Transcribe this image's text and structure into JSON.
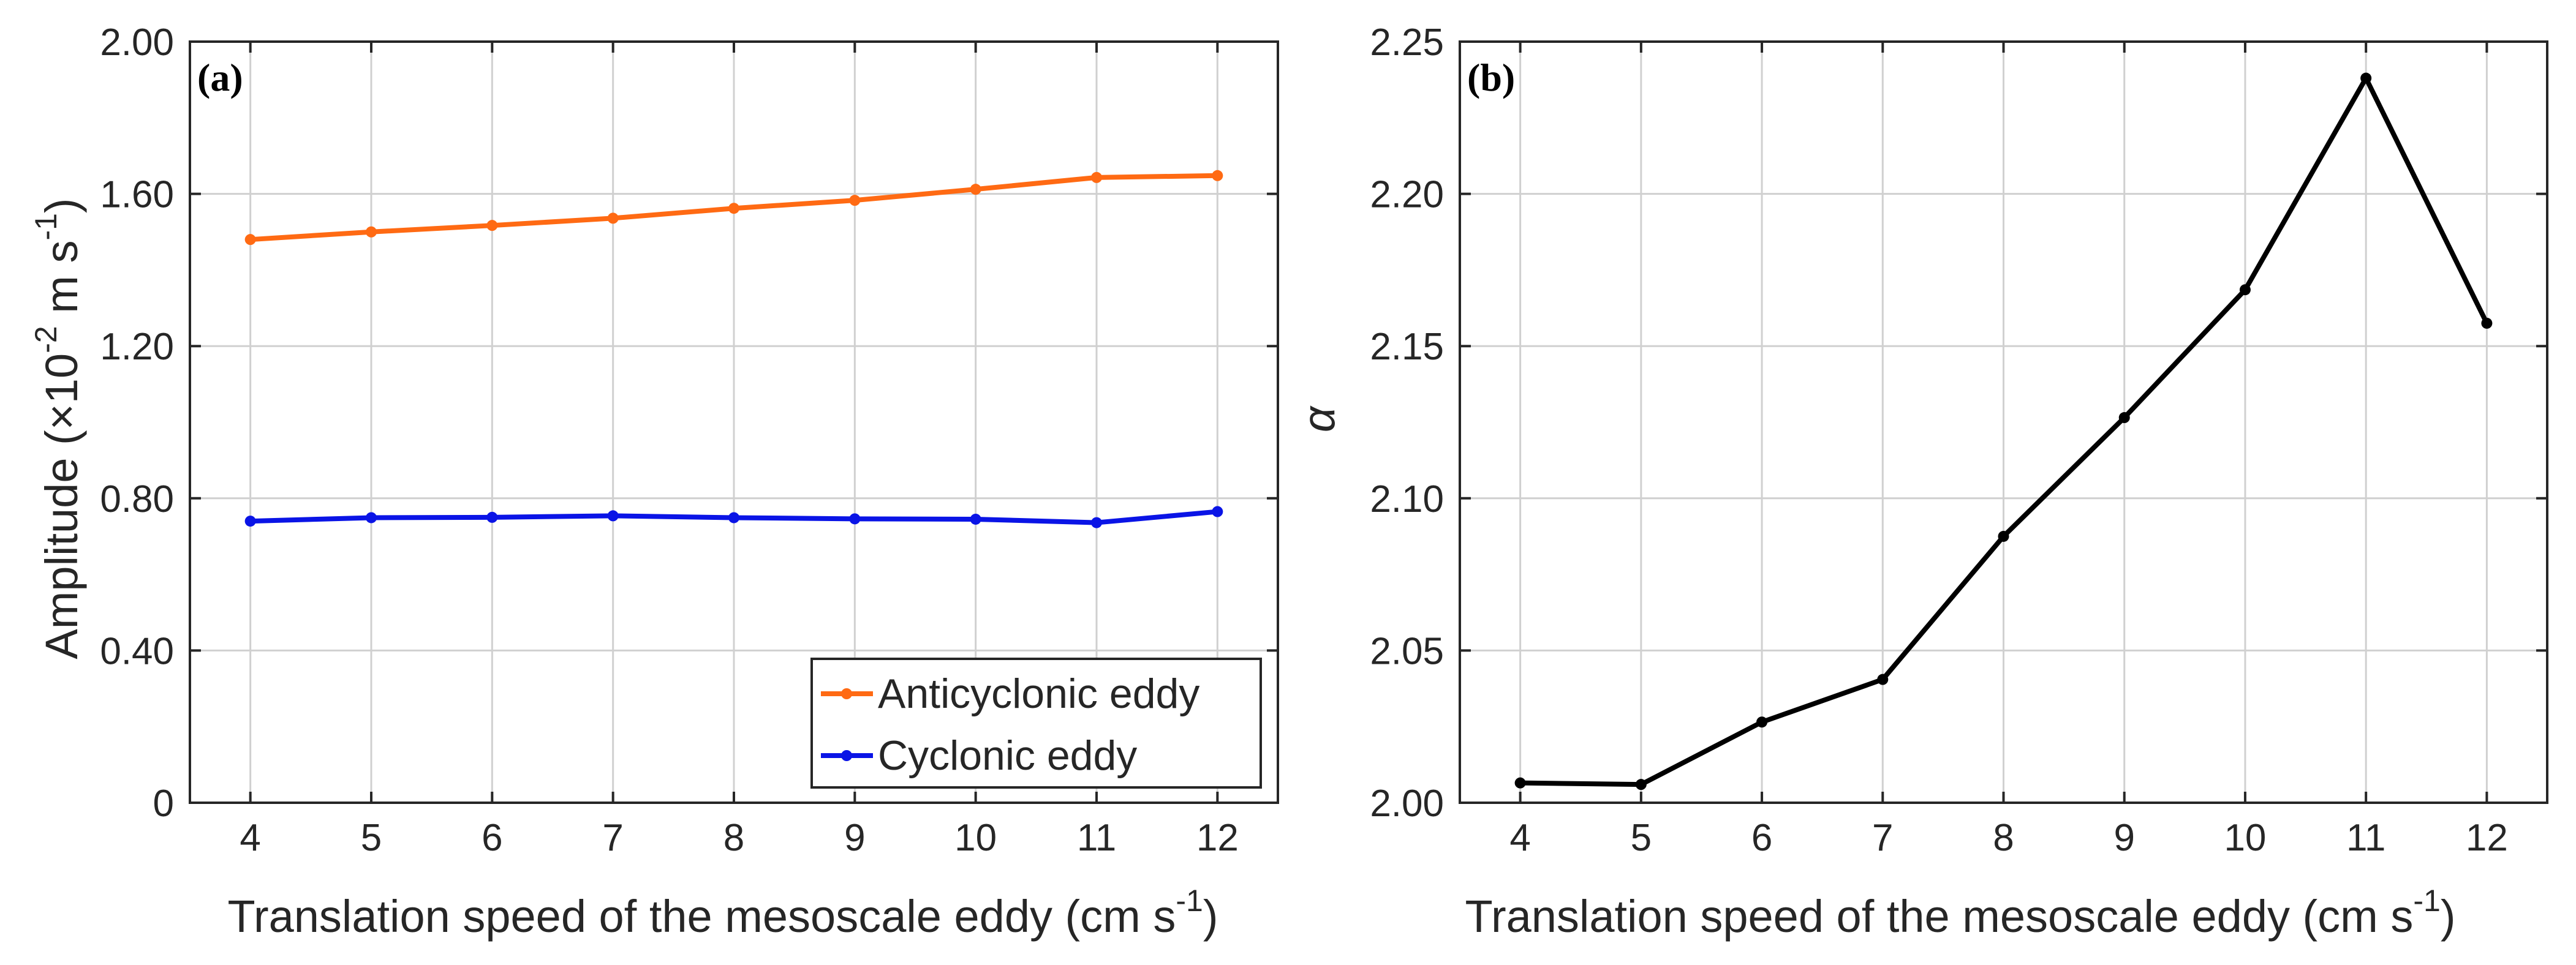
{
  "chart_data": [
    {
      "type": "line",
      "panel_label": "(a)",
      "x": [
        4,
        5,
        6,
        7,
        8,
        9,
        10,
        11,
        12
      ],
      "xlim": [
        3.5,
        12.5
      ],
      "ylim": [
        0,
        2.0
      ],
      "xticks": [
        "4",
        "5",
        "6",
        "7",
        "8",
        "9",
        "10",
        "11",
        "12"
      ],
      "yticks": [
        {
          "value": 0,
          "label": "0"
        },
        {
          "value": 0.4,
          "label": "0.40"
        },
        {
          "value": 0.8,
          "label": "0.80"
        },
        {
          "value": 1.2,
          "label": "1.20"
        },
        {
          "value": 1.6,
          "label": "1.60"
        },
        {
          "value": 2.0,
          "label": "2.00"
        }
      ],
      "xlabel": {
        "main": "Translation speed of the mesoscale eddy (cm s",
        "sup": "-1",
        "tail": ")"
      },
      "ylabel": {
        "p1": "Amplitude (",
        "times": "×",
        "p2": "10",
        "sup1": "-2",
        "p3": " m s",
        "sup2": "-1",
        "p4": ")"
      },
      "grid": true,
      "legend_position": "bottom-right",
      "series": [
        {
          "name": "Anticyclonic eddy",
          "color": "#FF6A13",
          "values": [
            1.48,
            1.5,
            1.517,
            1.536,
            1.562,
            1.583,
            1.612,
            1.643,
            1.648
          ]
        },
        {
          "name": "Cyclonic eddy",
          "color": "#0A14E6",
          "values": [
            0.74,
            0.749,
            0.75,
            0.754,
            0.749,
            0.746,
            0.745,
            0.736,
            0.765
          ]
        }
      ]
    },
    {
      "type": "line",
      "panel_label": "(b)",
      "x": [
        4,
        5,
        6,
        7,
        8,
        9,
        10,
        11,
        12
      ],
      "xlim": [
        3.5,
        12.5
      ],
      "ylim": [
        2.0,
        2.25
      ],
      "xticks": [
        "4",
        "5",
        "6",
        "7",
        "8",
        "9",
        "10",
        "11",
        "12"
      ],
      "yticks": [
        {
          "value": 2.0,
          "label": "2.00"
        },
        {
          "value": 2.05,
          "label": "2.05"
        },
        {
          "value": 2.1,
          "label": "2.10"
        },
        {
          "value": 2.15,
          "label": "2.15"
        },
        {
          "value": 2.2,
          "label": "2.20"
        },
        {
          "value": 2.25,
          "label": "2.25"
        }
      ],
      "xlabel": {
        "main": "Translation speed of the mesoscale eddy (cm s",
        "sup": "-1",
        "tail": ")"
      },
      "ylabel": "α",
      "grid": true,
      "series": [
        {
          "color": "#000000",
          "values": [
            2.0065,
            2.006,
            2.0265,
            2.0405,
            2.0875,
            2.1265,
            2.1685,
            2.238,
            2.1575
          ]
        }
      ]
    }
  ]
}
